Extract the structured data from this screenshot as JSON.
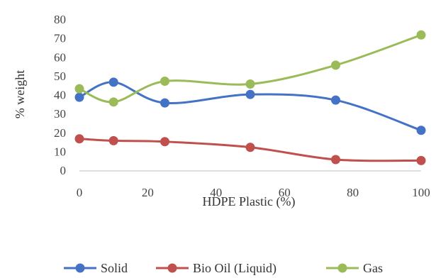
{
  "chart_data": {
    "type": "line",
    "smooth": true,
    "xlabel": "HDPE Plastic (%)",
    "ylabel": "% weight",
    "xlim": [
      0,
      100
    ],
    "ylim": [
      0,
      80
    ],
    "x_ticks": [
      0,
      20,
      40,
      60,
      80,
      100
    ],
    "y_ticks": [
      0,
      10,
      20,
      30,
      40,
      50,
      60,
      70,
      80
    ],
    "x_tick_labels": [
      "0",
      "20",
      "40",
      "60",
      "80",
      "100"
    ],
    "y_tick_labels": [
      "0",
      "10",
      "20",
      "30",
      "40",
      "50",
      "60",
      "70",
      "80"
    ],
    "grid": false,
    "legend_position": "bottom",
    "series": [
      {
        "name": "Solid",
        "color": "#4472c4",
        "x": [
          0,
          10,
          25,
          50,
          75,
          100
        ],
        "y": [
          39,
          47,
          36,
          40.5,
          37.5,
          21.5
        ]
      },
      {
        "name": "Bio Oil (Liquid)",
        "color": "#c0504d",
        "x": [
          0,
          10,
          25,
          50,
          75,
          100
        ],
        "y": [
          17,
          16,
          15.5,
          12.5,
          6,
          5.5
        ]
      },
      {
        "name": "Gas",
        "color": "#9bbb59",
        "x": [
          0,
          10,
          25,
          50,
          75,
          100
        ],
        "y": [
          43.5,
          36.5,
          47.5,
          46,
          56,
          72
        ]
      }
    ]
  }
}
